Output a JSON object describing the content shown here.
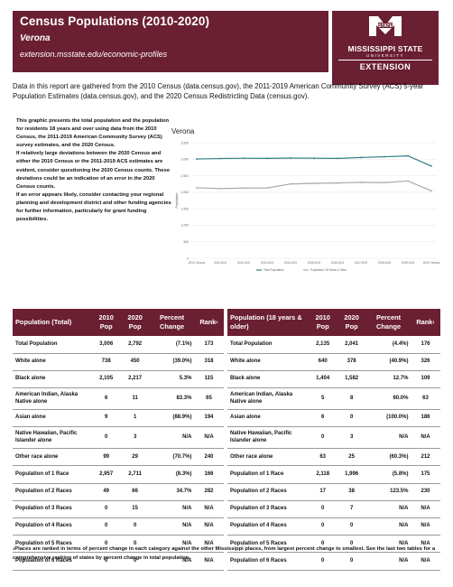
{
  "header": {
    "title": "Census Populations (2010-2020)",
    "place": "Verona",
    "url": "extension.msstate.edu/economic-profiles"
  },
  "logo": {
    "line1": "MISSISSIPPI STATE",
    "line2": "UNIVERSITY",
    "line3": "EXTENSION",
    "mark": "STATE"
  },
  "intro": "Data in this report are gathered from the 2010 Census (data.census.gov), the 2011-2019 American Community Survey (ACS) 5-year Population Estimates (data.census.gov), and the 2020 Census Redistricting Data (census.gov).",
  "side": [
    "This graphic presents the total population and the population for residents 18 years and over using data from the 2010 Census, the 2011-2019 American Community Survey (ACS) survey estimates, and the 2020 Census.",
    "If relatively large deviations between the 2020 Census and either the 2010 Census or the 2011-2019 ACS estimates are evident, consider questioning the 2020 Census counts. These deviations could be an indication of an error in the 2020 Census counts.",
    "If an error appears likely, consider contacting your regional planning and development district and other funding agencies for further information, particularly for grant funding possibilities."
  ],
  "chart_data": {
    "type": "line",
    "title": "Verona",
    "ylabel": "Population",
    "x": [
      "2010 Census",
      "2011 ACS",
      "2012 ACS",
      "2013 ACS",
      "2014 ACS",
      "2015 ACS",
      "2016 ACS",
      "2017 ACS",
      "2018 ACS",
      "2019 ACS",
      "2020 Census"
    ],
    "y_ticks": [
      "0",
      "500",
      "1,000",
      "1,500",
      "2,000",
      "2,500",
      "3,000",
      "3,500"
    ],
    "ylim": [
      0,
      3500
    ],
    "series": [
      {
        "name": "Total Population",
        "color": "#2e7d86",
        "values": [
          3006,
          3020,
          3030,
          3025,
          3035,
          3030,
          3025,
          3050,
          3075,
          3100,
          2792
        ]
      },
      {
        "name": "Population 18 Years & Older",
        "color": "#a8a8a8",
        "values": [
          2135,
          2110,
          2125,
          2130,
          2250,
          2270,
          2280,
          2300,
          2290,
          2340,
          2041
        ]
      }
    ],
    "legend": [
      "Total Population",
      "Population 18 Years & Older"
    ],
    "legend_position": "bottom"
  },
  "table1": {
    "headers": [
      "Population (Total)",
      "2010 Pop",
      "2020 Pop",
      "Percent Change",
      "Rank"
    ],
    "rows": [
      [
        "Total Population",
        "3,006",
        "2,792",
        "(7.1%)",
        "173"
      ],
      [
        "White alone",
        "738",
        "450",
        "(39.0%)",
        "318"
      ],
      [
        "Black alone",
        "2,105",
        "2,217",
        "5.3%",
        "115"
      ],
      [
        "American Indian, Alaska Native alone",
        "6",
        "11",
        "83.3%",
        "65"
      ],
      [
        "Asian alone",
        "9",
        "1",
        "(88.9%)",
        "194"
      ],
      [
        "Native Hawaiian, Pacific Islander alone",
        "0",
        "3",
        "N/A",
        "N/A"
      ],
      [
        "Other race alone",
        "99",
        "29",
        "(70.7%)",
        "240"
      ],
      [
        "Population of 1 Race",
        "2,957",
        "2,711",
        "(8.3%)",
        "166"
      ],
      [
        "Population of 2 Races",
        "49",
        "66",
        "34.7%",
        "282"
      ],
      [
        "Population of 3 Races",
        "0",
        "15",
        "N/A",
        "N/A"
      ],
      [
        "Population of 4 Races",
        "0",
        "0",
        "N/A",
        "N/A"
      ],
      [
        "Population of 5 Races",
        "0",
        "0",
        "N/A",
        "N/A"
      ],
      [
        "Population of 6 Races",
        "0",
        "0",
        "N/A",
        "N/A"
      ]
    ]
  },
  "table2": {
    "headers": [
      "Population (18 years & older)",
      "2010 Pop",
      "2020 Pop",
      "Percent Change",
      "Rank"
    ],
    "rows": [
      [
        "Total Population",
        "2,135",
        "2,041",
        "(4.4%)",
        "176"
      ],
      [
        "White alone",
        "640",
        "378",
        "(40.9%)",
        "326"
      ],
      [
        "Black alone",
        "1,404",
        "1,582",
        "12.7%",
        "109"
      ],
      [
        "American Indian, Alaska Native alone",
        "5",
        "8",
        "60.0%",
        "63"
      ],
      [
        "Asian alone",
        "6",
        "0",
        "(100.0%)",
        "186"
      ],
      [
        "Native Hawaiian, Pacific Islander alone",
        "0",
        "3",
        "N/A",
        "N/A"
      ],
      [
        "Other race alone",
        "63",
        "25",
        "(60.3%)",
        "212"
      ],
      [
        "Population of 1 Race",
        "2,118",
        "1,996",
        "(5.8%)",
        "175"
      ],
      [
        "Population of 2 Races",
        "17",
        "38",
        "123.5%",
        "230"
      ],
      [
        "Population of 3 Races",
        "0",
        "7",
        "N/A",
        "N/A"
      ],
      [
        "Population of 4 Races",
        "0",
        "0",
        "N/A",
        "N/A"
      ],
      [
        "Population of 5 Races",
        "0",
        "0",
        "N/A",
        "N/A"
      ],
      [
        "Population of 6 Races",
        "0",
        "0",
        "N/A",
        "N/A"
      ]
    ]
  },
  "footnote_mark": "1",
  "footnote": "Places are ranked in terms of percent change in each category against the other Mississippi places, from largest percent change to smallest. See the last two tables for a comprehensive ranking of states by percent change in total population.",
  "colors": {
    "maroon": "#6b1f32",
    "teal": "#2e7d86",
    "gray": "#a8a8a8"
  }
}
